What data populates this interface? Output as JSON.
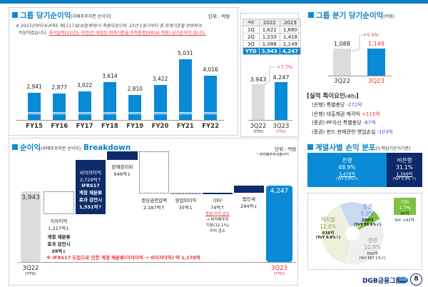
{
  "colors": {
    "accent": "#0a8ad6",
    "navy": "#0d2a6b",
    "grey": "#dcdcdc",
    "red": "#e8333a"
  },
  "annual": {
    "title": "그룹 당기순이익",
    "subtitle": "[지배주주지분 순이익]",
    "unit": "단위 : 억원",
    "note1": "※ 2023년부터 K-IFRS 제1117호(보험계약)이 적용되었으며, 23년 1분기부터 동 회계기준을 반영하여",
    "note2a": "작성하였습니다. ",
    "note2b": "과거실적(23년도 이전)은 개정된 회계기준을 미적용한(IFRS4 적용) 당기순이익 입니다."
  },
  "chart_data": [
    {
      "type": "bar",
      "categories": [
        "FY15",
        "FY16",
        "FY17",
        "FY18",
        "FY19",
        "FY20",
        "FY21",
        "FY22"
      ],
      "values": [
        2941,
        2877,
        3022,
        3614,
        2810,
        3422,
        5031,
        4016
      ],
      "value_labels": [
        "2,941",
        "2,877",
        "3,022",
        "3,614",
        "2,810",
        "3,422",
        "5,031",
        "4,016"
      ],
      "axis_break": true
    },
    {
      "type": "bar",
      "categories": [
        "3Q22",
        "3Q23"
      ],
      "sub": [
        "(YTD)",
        "(YTD)"
      ],
      "values": [
        3943,
        4247
      ],
      "value_labels": [
        "3,943",
        "4,247"
      ],
      "change": "+7.7%"
    },
    {
      "type": "bar",
      "categories": [
        "3Q22",
        "3Q23"
      ],
      "values": [
        1088,
        1149
      ],
      "value_labels": [
        "1,088",
        "1,149"
      ],
      "change": "+5.6%"
    },
    {
      "type": "pie",
      "labels": [
        "증권",
        "기타",
        "생명",
        "캐피탈"
      ],
      "values": [
        298,
        85,
        550,
        636
      ],
      "colors": [
        "#c9d9f0",
        "#7cc242",
        "#efefef",
        "#eef0dc"
      ]
    }
  ],
  "table": {
    "headers": [
      "억원",
      "2022",
      "2023"
    ],
    "rows": [
      [
        "1Q",
        "1,622",
        "1,680"
      ],
      [
        "2Q",
        "1,233",
        "1,418"
      ],
      [
        "3Q",
        "1,088",
        "1,149"
      ],
      [
        "YTD",
        "3,943",
        "4,247"
      ]
    ]
  },
  "quarter": {
    "title": "그룹 분기 당기순이익",
    "subtitle": "(억원)"
  },
  "factors": {
    "title": "[실적 특이요인",
    "title_sub": "(세전)",
    "title_end": "]",
    "items": [
      {
        "label": "(은행) 특별충당 ",
        "value": "-272억",
        "color": "#5a4ee0"
      },
      {
        "label": "(은행) 대출채권 매각익 ",
        "value": "+115억",
        "color": "#e8333a"
      },
      {
        "label": "(증권) PF자산 특별충당 ",
        "value": "-87억",
        "color": "#5a4ee0"
      },
      {
        "label": "(증권) 펀드 판매관련 영업손실 ",
        "value": "-103억",
        "color": "#5a4ee0"
      }
    ]
  },
  "breakdown": {
    "title": "순이익",
    "subtitle": "(지배주주지분 순이익)",
    "title_en": "Breakdown",
    "unit": "단위 : 억원",
    "footnote": "¹ 비지배주주지분이익",
    "start": "3,943",
    "end": "4,247",
    "start_label": "3Q22",
    "end_label": "3Q23",
    "ytd": "(YTD)",
    "interest": [
      "이자이익",
      "1,217억↓"
    ],
    "interest_adj": [
      "계정 재분류",
      "효과 감안시",
      "39억↓"
    ],
    "noninterest": [
      "비이자이익",
      "2,729억↑"
    ],
    "noninterest_adj": [
      "IFRS17",
      "계정 재분류",
      "효과 감안시",
      "1,551억↑"
    ],
    "sga": [
      "판매관리비",
      "646억↓"
    ],
    "provision": [
      "충당금전입액",
      "2,187억↑"
    ],
    "nonop": [
      "영업외이익",
      "35억↓"
    ],
    "other": [
      "기타¹",
      "74억↑"
    ],
    "other_note_red": "증권 이익 감소",
    "other_note": [
      "→ 비지배주주",
      "지분(12.1%)",
      "이익 감소"
    ],
    "tax": [
      "법인세",
      "294억↓"
    ],
    "ifrs_note": "※ IFRS17 도입으로 인한 계정 재분류(이자이익 → 비이자이익) 약 1,178억"
  },
  "distribution": {
    "title": "계열사별 손익 분포",
    "subtitle": "[누적당기순익기준]",
    "bank": [
      "은행",
      "68.9%",
      "3,479억",
      "(YoY 5.6%↑)"
    ],
    "nonbank": [
      "비은행",
      "31.1%",
      "1,569억",
      "(YoY 5.9% ↑)"
    ],
    "sec": [
      "증권",
      "5.9%",
      "298억",
      "(YoY 59.6%↓)"
    ],
    "cap": [
      "캐피탈",
      "12.6%",
      "636억",
      "(YoY 0.8%↑)"
    ],
    "life": [
      "생명",
      "10.9%",
      "550억",
      "(YoY 697.1%↑)"
    ],
    "etc": [
      "기타",
      "1.7%",
      "85억"
    ],
    "etc_yoy": "YoY +41억"
  },
  "footer": {
    "brand": "DGB금융그룹",
    "logo": "DGB",
    "page": "8"
  }
}
